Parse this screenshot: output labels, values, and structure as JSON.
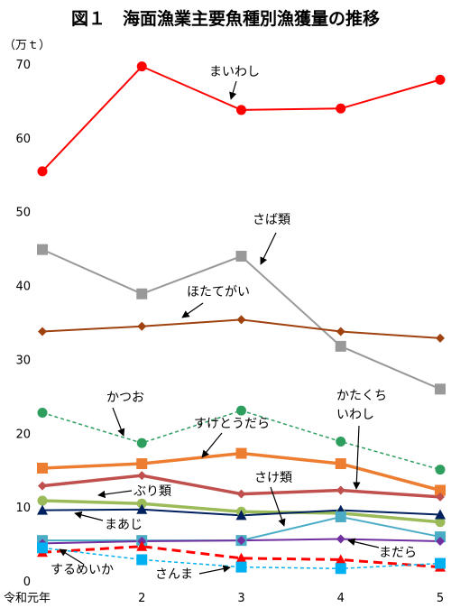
{
  "chart_data": {
    "type": "line",
    "title": "図１　海面漁業主要魚種別漁獲量の推移",
    "unit": "（万ｔ）",
    "categories": [
      "令和元年",
      "2",
      "3",
      "4",
      "5"
    ],
    "ylim": [
      0,
      70
    ],
    "yticks": [
      "0",
      "10",
      "20",
      "30",
      "40",
      "50",
      "60",
      "70"
    ],
    "grid": false,
    "series": [
      {
        "name": "まいわし",
        "values": [
          55.6,
          69.8,
          63.9,
          64.1,
          68.0
        ],
        "color": "#ff0000",
        "marker": "circle",
        "dash": "solid"
      },
      {
        "name": "さば類",
        "values": [
          45.0,
          39.0,
          44.1,
          31.9,
          26.1
        ],
        "color": "#999999",
        "marker": "square",
        "dash": "solid"
      },
      {
        "name": "ほたてがい",
        "values": [
          33.9,
          34.6,
          35.5,
          33.9,
          33.0
        ],
        "color": "#a0420f",
        "marker": "diamond",
        "dash": "solid"
      },
      {
        "name": "かつお",
        "values": [
          22.9,
          18.8,
          23.2,
          19.0,
          15.2
        ],
        "color": "#2e9e5e",
        "marker": "circle",
        "dash": "dashed"
      },
      {
        "name": "すけとうだら",
        "values": [
          15.4,
          16.0,
          17.4,
          16.0,
          12.4
        ],
        "color": "#ed7d31",
        "marker": "square",
        "dash": "solid"
      },
      {
        "name": "かたくちいわし",
        "values": [
          13.0,
          14.4,
          11.9,
          12.4,
          11.5
        ],
        "color": "#c0504d",
        "marker": "diamond",
        "dash": "solid"
      },
      {
        "name": "ぶり類",
        "values": [
          11.0,
          10.6,
          9.5,
          9.3,
          8.1
        ],
        "color": "#9bbb59",
        "marker": "circle",
        "dash": "solid"
      },
      {
        "name": "まあじ",
        "values": [
          9.7,
          9.8,
          9.0,
          9.7,
          9.1
        ],
        "color": "#002060",
        "marker": "triangle",
        "dash": "solid"
      },
      {
        "name": "さけ類",
        "values": [
          5.6,
          5.6,
          5.6,
          8.8,
          6.1
        ],
        "color": "#4bacc6",
        "marker": "square",
        "dash": "solid"
      },
      {
        "name": "まだら",
        "values": [
          5.2,
          5.5,
          5.6,
          5.8,
          5.5
        ],
        "color": "#7030a0",
        "marker": "diamond",
        "dash": "solid"
      },
      {
        "name": "するめいか",
        "values": [
          4.0,
          4.8,
          3.2,
          3.0,
          2.0
        ],
        "color": "#ff0000",
        "marker": "triangle",
        "dash": "dashed"
      },
      {
        "name": "さんま",
        "values": [
          4.6,
          3.0,
          2.0,
          1.8,
          2.5
        ],
        "color": "#00b0f0",
        "marker": "square",
        "dash": "dashed"
      }
    ],
    "annotations": [
      "まいわし",
      "さば類",
      "ほたてがい",
      "かつお",
      "すけとうだら",
      "かたくち",
      "いわし",
      "ぶり類",
      "まあじ",
      "さけ類",
      "まだら",
      "するめいか",
      "さんま"
    ]
  }
}
